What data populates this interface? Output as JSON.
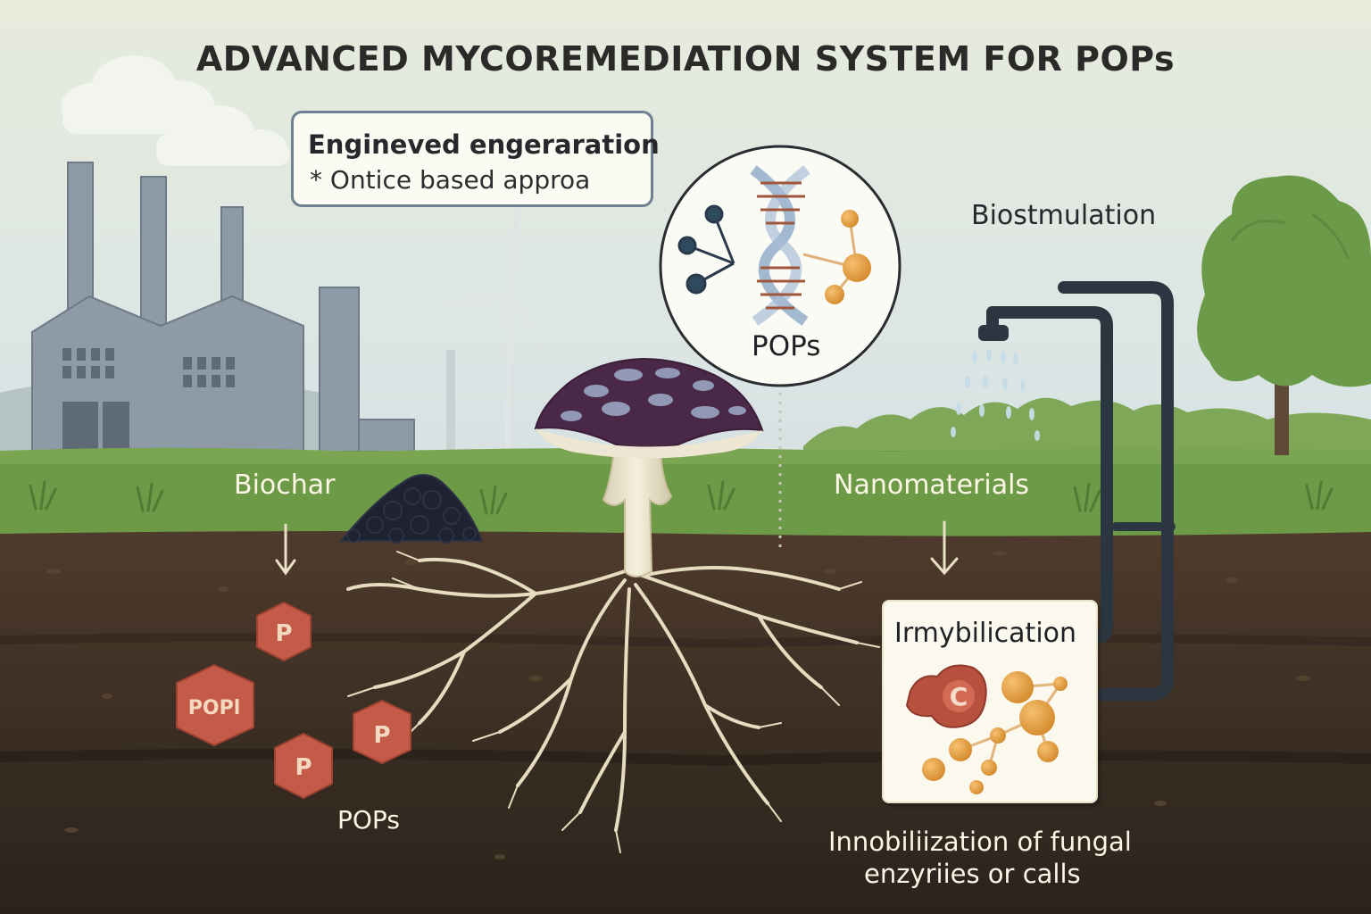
{
  "title": "ADVANCED MYCOREMEDIATION SYSTEM FOR POPs",
  "callout": {
    "heading": "Engineved engeraration",
    "subtext": "* Ontice based approa"
  },
  "labels": {
    "molecule_bubble": "POPs",
    "biostimulation": "Biostmulation",
    "biochar": "Biochar",
    "nanomaterials": "Nanomaterials",
    "pops_soil": "POPs"
  },
  "pops_particles": [
    "P",
    "POPl",
    "P",
    "P"
  ],
  "immobilization": {
    "heading": "Irmybilication",
    "enzyme_letter": "C",
    "caption_line1": "Innobiliization of fungal",
    "caption_line2": "enzyriies or calls"
  },
  "icons": [
    "factory-icon",
    "wind-turbine-icon",
    "tree-icon",
    "mushroom-icon",
    "mycelium-icon",
    "biochar-pile-icon",
    "dna-helix-icon",
    "molecule-icon",
    "sprinkler-pipe-icon",
    "down-arrow-icon"
  ],
  "colors": {
    "sky_top": "#e7ecdd",
    "grass": "#6d9a47",
    "soil_top": "#4e3a2b",
    "soil_bottom": "#2c241d",
    "pops_particle": "#c45a48",
    "nanoparticle": "#e09a3a",
    "mushroom_cap": "#4a2848",
    "pipe": "#2b3640",
    "tree": "#6b9a48"
  }
}
